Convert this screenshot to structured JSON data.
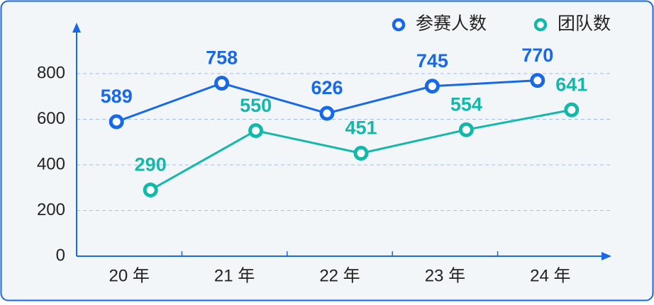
{
  "chart_data": {
    "type": "line",
    "categories": [
      "20 年",
      "21 年",
      "22 年",
      "23 年",
      "24 年"
    ],
    "series": [
      {
        "name": "参赛人数",
        "color": "#1769e8",
        "values": [
          589,
          758,
          626,
          745,
          770
        ]
      },
      {
        "name": "团队数",
        "color": "#14b8aa",
        "values": [
          290,
          550,
          451,
          554,
          641
        ]
      }
    ],
    "ylim": [
      0,
      1000
    ],
    "yticks": [
      0,
      200,
      400,
      600,
      800
    ],
    "grid": true,
    "legend": "top-right"
  }
}
